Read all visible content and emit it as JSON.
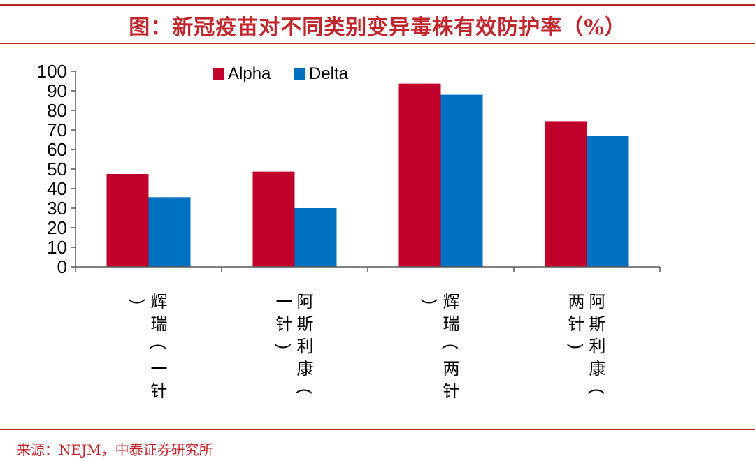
{
  "page": {
    "title": "图：新冠疫苗对不同类别变异毒株有效防护率（%）",
    "source": "来源：NEJM，中泰证券研究所"
  },
  "colors": {
    "accent": "#c0272d",
    "alpha": "#c0002a",
    "delta": "#0070c0",
    "axis": "#595959"
  },
  "chart_data": {
    "type": "bar",
    "title": "新冠疫苗对不同类别变异毒株有效防护率（%）",
    "xlabel": "",
    "ylabel": "",
    "ylim": [
      0,
      100
    ],
    "yticks": [
      0,
      10,
      20,
      30,
      40,
      50,
      60,
      70,
      80,
      90,
      100
    ],
    "grid": false,
    "legend": "top-center",
    "categories": [
      "辉瑞（一针）",
      "阿斯利康（一针）",
      "辉瑞（两针）",
      "阿斯利康（两针）"
    ],
    "series": [
      {
        "name": "Alpha",
        "values": [
          47.5,
          48.7,
          93.7,
          74.5
        ]
      },
      {
        "name": "Delta",
        "values": [
          35.6,
          30.0,
          88.0,
          67.0
        ]
      }
    ]
  }
}
